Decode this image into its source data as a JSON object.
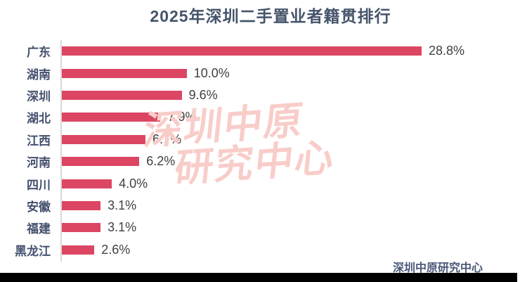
{
  "title": "2025年深圳二手置业者籍贯排行",
  "watermark": {
    "line1": "深圳中原",
    "line2": "研究中心"
  },
  "footer": {
    "source_label": "深圳中原研究中心"
  },
  "colors": {
    "bar": "#dc4663",
    "title_text": "#44546a",
    "category_label": "#44506e",
    "value_label": "#3f3f3f",
    "axis_line": "#d9d9d9",
    "watermark": "#f8cdc9",
    "footer_text": "#4a5878",
    "bottom_strip": "#000000"
  },
  "chart_data": {
    "type": "bar",
    "orientation": "horizontal",
    "title": "2025年深圳二手置业者籍贯排行",
    "categories": [
      "广东",
      "湖南",
      "深圳",
      "湖北",
      "江西",
      "河南",
      "四川",
      "安徽",
      "福建",
      "黑龙江"
    ],
    "values": [
      28.8,
      10.0,
      9.6,
      7.9,
      6.7,
      6.2,
      4.0,
      3.1,
      3.1,
      2.6
    ],
    "value_labels": [
      "28.8%",
      "10.0%",
      "9.6%",
      "7.9%",
      "6.7%",
      "6.2%",
      "4.0%",
      "3.1%",
      "3.1%",
      "2.6%"
    ],
    "unit": "%",
    "xlim": [
      0,
      30
    ],
    "grid": false,
    "legend": false,
    "value_labels_position": "end-of-bar"
  }
}
